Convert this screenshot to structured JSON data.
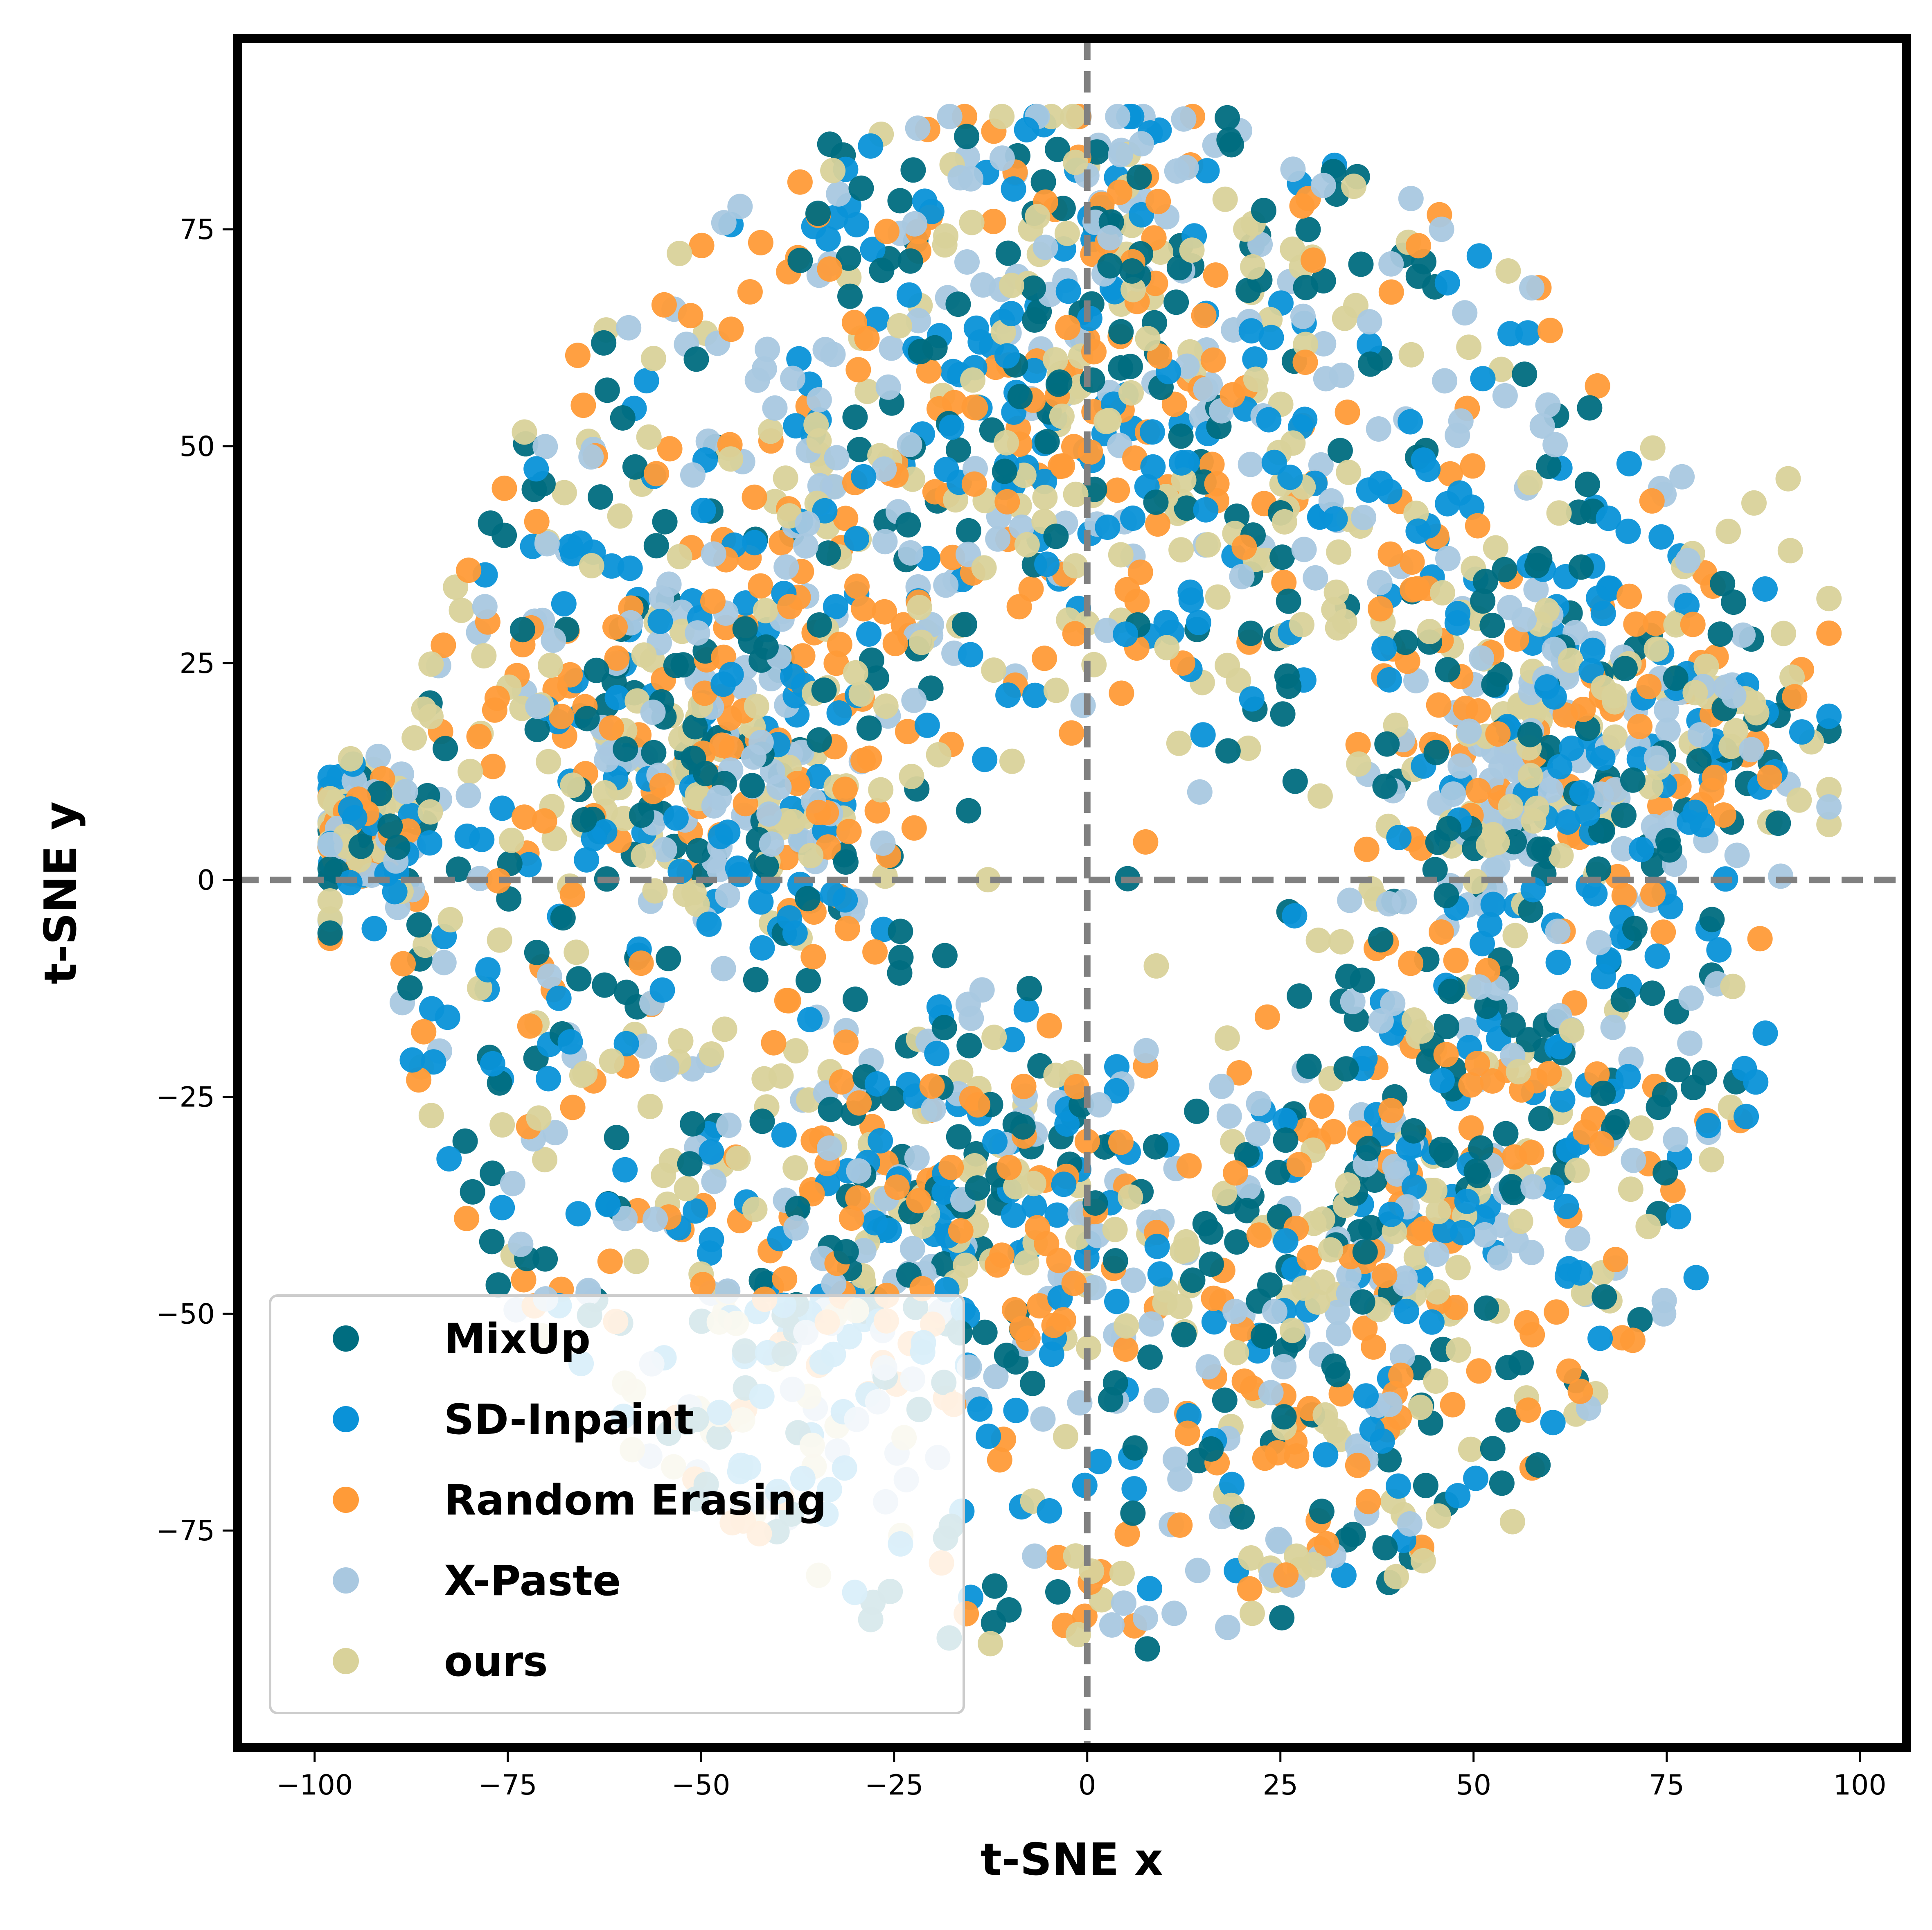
{
  "chart_data": {
    "type": "scatter",
    "xlabel": "t-SNE x",
    "ylabel": "t-SNE y",
    "xlim": [
      -110,
      106
    ],
    "ylim": [
      -100,
      97
    ],
    "xticks": [
      -100,
      -75,
      -50,
      -25,
      0,
      25,
      50,
      75,
      100
    ],
    "xtick_labels": [
      "−100",
      "−75",
      "−50",
      "−25",
      "0",
      "25",
      "50",
      "75",
      "100"
    ],
    "yticks": [
      -75,
      -50,
      -25,
      0,
      25,
      50,
      75
    ],
    "ytick_labels": [
      "−75",
      "−50",
      "−25",
      "0",
      "25",
      "50",
      "75"
    ],
    "grid": false,
    "reference_lines": {
      "x": 0,
      "y": 0,
      "style": "dashed",
      "color": "#808080"
    },
    "legend_position": "lower-left",
    "point_count_per_series": 600,
    "series": [
      {
        "name": "MixUp",
        "color": "#006D80"
      },
      {
        "name": "SD-Inpaint",
        "color": "#0A92D8"
      },
      {
        "name": "Random Erasing",
        "color": "#FF9B38"
      },
      {
        "name": "X-Paste",
        "color": "#A9C8E0"
      },
      {
        "name": "ours",
        "color": "#D9D29A"
      }
    ],
    "clusters": [
      {
        "center": [
          -95,
          5
        ],
        "spread": 4
      },
      {
        "center": [
          -55,
          20
        ],
        "spread": 12
      },
      {
        "center": [
          -40,
          10
        ],
        "spread": 10
      },
      {
        "center": [
          -20,
          45
        ],
        "spread": 14
      },
      {
        "center": [
          -10,
          -35
        ],
        "spread": 12
      },
      {
        "center": [
          -35,
          -45
        ],
        "spread": 12
      },
      {
        "center": [
          55,
          12
        ],
        "spread": 10
      },
      {
        "center": [
          75,
          20
        ],
        "spread": 10
      },
      {
        "center": [
          30,
          -45
        ],
        "spread": 14
      },
      {
        "center": [
          50,
          -30
        ],
        "spread": 12
      },
      {
        "center": [
          20,
          40
        ],
        "spread": 14
      },
      {
        "center": [
          0,
          70
        ],
        "spread": 12
      }
    ]
  }
}
